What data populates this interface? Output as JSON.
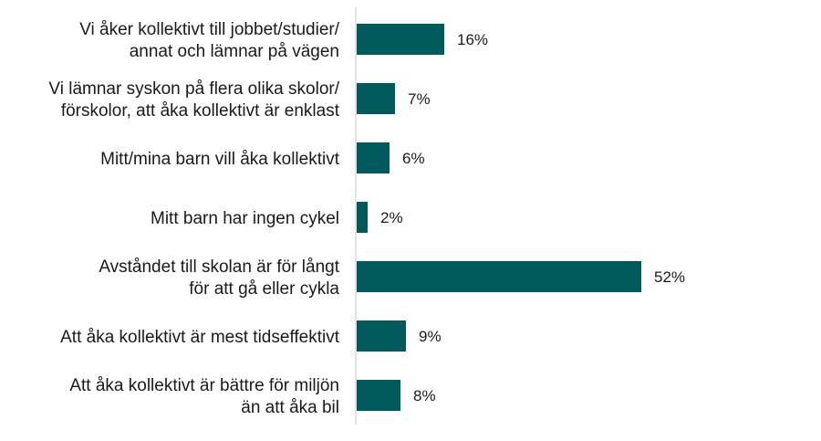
{
  "chart_data": {
    "type": "bar",
    "orientation": "horizontal",
    "categories": [
      [
        "Vi åker kollektivt till jobbet/studier/",
        "annat och lämnar på vägen"
      ],
      [
        "Vi lämnar syskon på flera olika skolor/",
        "förskolor, att åka kollektivt är enklast"
      ],
      [
        "Mitt/mina barn vill åka kollektivt"
      ],
      [
        "Mitt barn har ingen cykel"
      ],
      [
        "Avståndet till skolan är för långt",
        "för att gå eller cykla"
      ],
      [
        "Att åka kollektivt är mest tidseffektivt"
      ],
      [
        "Att åka kollektivt är bättre för miljön",
        "än att åka bil"
      ]
    ],
    "values": [
      16,
      7,
      6,
      2,
      52,
      9,
      8
    ],
    "value_labels": [
      "16%",
      "7%",
      "6%",
      "2%",
      "52%",
      "9%",
      "8%"
    ],
    "title": "",
    "xlabel": "",
    "ylabel": "",
    "xlim": [
      0,
      80
    ],
    "grid": false,
    "legend": "none",
    "bar_color": "#005a5b"
  }
}
